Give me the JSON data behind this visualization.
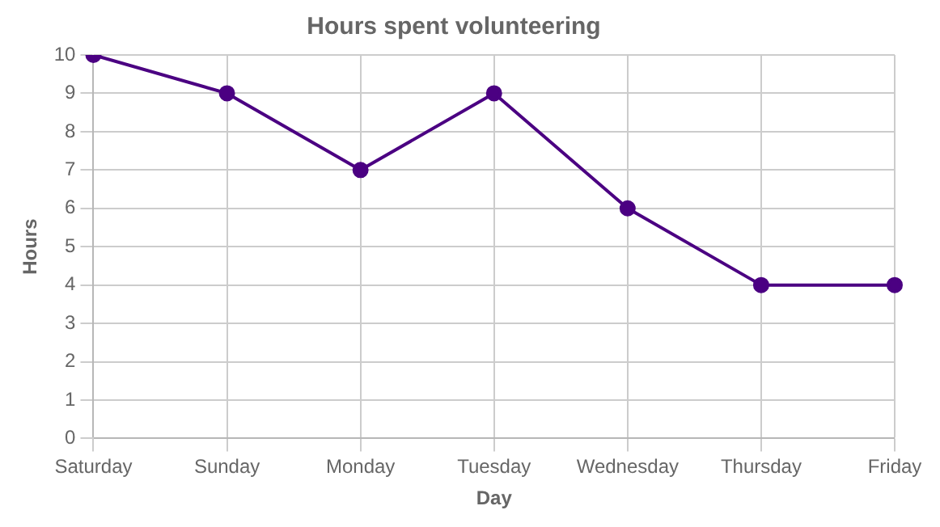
{
  "chart_data": {
    "type": "line",
    "title": "Hours spent volunteering",
    "xlabel": "Day",
    "ylabel": "Hours",
    "categories": [
      "Saturday",
      "Sunday",
      "Monday",
      "Tuesday",
      "Wednesday",
      "Thursday",
      "Friday"
    ],
    "series": [
      {
        "color": "#4b0082",
        "values": [
          10,
          9,
          7,
          9,
          6,
          4,
          4
        ]
      }
    ],
    "ylim": [
      0,
      10
    ],
    "yticks": [
      0,
      1,
      2,
      3,
      4,
      5,
      6,
      7,
      8,
      9,
      10
    ],
    "grid": true,
    "legend": false,
    "marker": "circle",
    "line_style": "solid"
  }
}
